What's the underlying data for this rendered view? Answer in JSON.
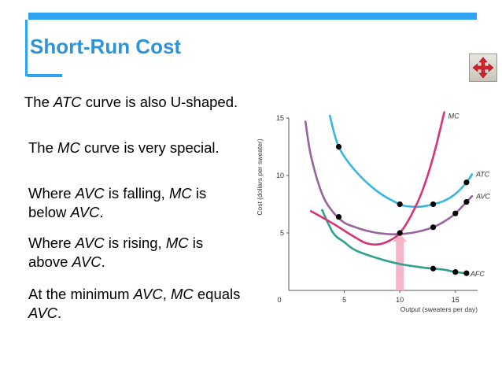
{
  "slide": {
    "title": "Short-Run Cost",
    "paragraphs": [
      [
        {
          "t": "The "
        },
        {
          "t": "ATC",
          "i": true
        },
        {
          "t": " curve is also U-shaped."
        }
      ],
      [
        {
          "t": "The "
        },
        {
          "t": "MC",
          "i": true
        },
        {
          "t": " curve is very special."
        }
      ],
      [
        {
          "t": "Where "
        },
        {
          "t": "AVC",
          "i": true
        },
        {
          "t": " is falling, "
        },
        {
          "t": "MC",
          "i": true
        },
        {
          "t": " is below "
        },
        {
          "t": "AVC",
          "i": true
        },
        {
          "t": "."
        }
      ],
      [
        {
          "t": "Where "
        },
        {
          "t": "AVC",
          "i": true
        },
        {
          "t": " is rising, "
        },
        {
          "t": "MC",
          "i": true
        },
        {
          "t": " is above "
        },
        {
          "t": "AVC",
          "i": true
        },
        {
          "t": "."
        }
      ],
      [
        {
          "t": "At the minimum "
        },
        {
          "t": "AVC",
          "i": true
        },
        {
          "t": ", "
        },
        {
          "t": "MC",
          "i": true
        },
        {
          "t": " equals "
        },
        {
          "t": "AVC",
          "i": true
        },
        {
          "t": "."
        }
      ]
    ],
    "nav_icon": "move-arrows-icon"
  },
  "chart_data": {
    "type": "line",
    "xlabel": "Output (sweaters per day)",
    "ylabel": "Cost (dollars per sweater)",
    "xlim": [
      0,
      17
    ],
    "ylim": [
      0,
      15
    ],
    "xticks": [
      "0",
      "5",
      "10",
      "15"
    ],
    "yticks": [
      "5",
      "10",
      "15"
    ],
    "series": [
      {
        "name": "MC",
        "color": "#d8337a",
        "x": [
          2,
          4,
          6,
          7,
          8,
          9,
          10,
          11,
          12,
          13,
          14
        ],
        "y": [
          6.9,
          5.8,
          4.6,
          4.1,
          4.0,
          4.3,
          5.0,
          6.5,
          8.6,
          11.6,
          15.5
        ]
      },
      {
        "name": "ATC",
        "color": "#35b6e2",
        "x": [
          3.7,
          4.5,
          6,
          8,
          10,
          11,
          12,
          13,
          14,
          15,
          16,
          16.5
        ],
        "y": [
          15.2,
          12.5,
          10.4,
          8.6,
          7.5,
          7.3,
          7.3,
          7.5,
          7.8,
          8.4,
          9.4,
          10.1
        ],
        "points_x": [
          4.5,
          10,
          13,
          16
        ],
        "points_y": [
          12.5,
          7.5,
          7.5,
          9.4
        ]
      },
      {
        "name": "AVC",
        "color": "#96639c",
        "x": [
          1.5,
          2,
          3,
          4,
          5,
          6,
          7,
          8,
          9,
          10,
          11,
          12,
          13,
          14,
          15,
          16,
          16.5
        ],
        "y": [
          14.7,
          11.7,
          8.4,
          6.8,
          5.9,
          5.5,
          5.2,
          5.0,
          4.9,
          4.9,
          5.0,
          5.2,
          5.5,
          6.0,
          6.7,
          7.7,
          8.2
        ],
        "points_x": [
          4.5,
          10,
          13,
          15,
          16
        ],
        "points_y": [
          6.4,
          5.0,
          5.5,
          6.7,
          7.7
        ]
      },
      {
        "name": "AFC",
        "color": "#2f9f8e",
        "x": [
          3,
          4,
          5,
          6,
          8,
          10,
          12,
          13,
          14,
          15,
          16
        ],
        "y": [
          7.0,
          5.0,
          4.2,
          3.5,
          2.8,
          2.3,
          2.0,
          1.9,
          1.8,
          1.6,
          1.5
        ],
        "points_x": [
          13,
          15,
          16
        ],
        "points_y": [
          1.9,
          1.6,
          1.5
        ]
      }
    ],
    "annotation": {
      "type": "arrow",
      "x": 10,
      "y_from": 0,
      "y_to": 5.0,
      "color": "#f4b6c8"
    }
  }
}
